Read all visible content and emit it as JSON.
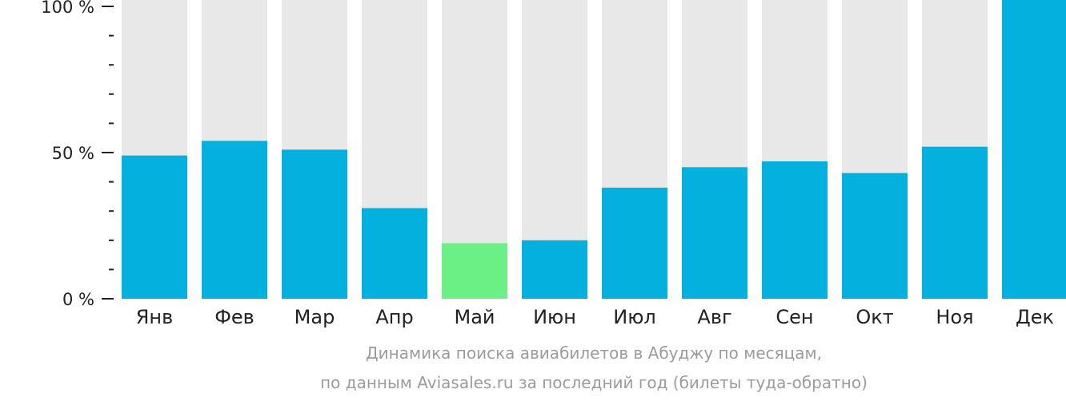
{
  "chart_data": {
    "type": "bar",
    "categories": [
      "Янв",
      "Фев",
      "Мар",
      "Апр",
      "Май",
      "Июн",
      "Июл",
      "Авг",
      "Сен",
      "Окт",
      "Ноя",
      "Дек"
    ],
    "values": [
      49,
      54,
      51,
      31,
      19,
      20,
      38,
      45,
      47,
      43,
      52,
      100
    ],
    "ylim": [
      0,
      100
    ],
    "yticks": [
      "0 %",
      "50 %",
      "100 %"
    ],
    "highlight_category": "Май",
    "colors": {
      "bar": "#03b0de",
      "highlight": "#6af085",
      "background_bar": "#e8e8e8",
      "axis": "#222222"
    }
  },
  "caption": {
    "line1": "Динамика поиска авиабилетов в Абуджу по месяцам,",
    "line2": "по данным Aviasales.ru за последний год (билеты туда-обратно)"
  }
}
